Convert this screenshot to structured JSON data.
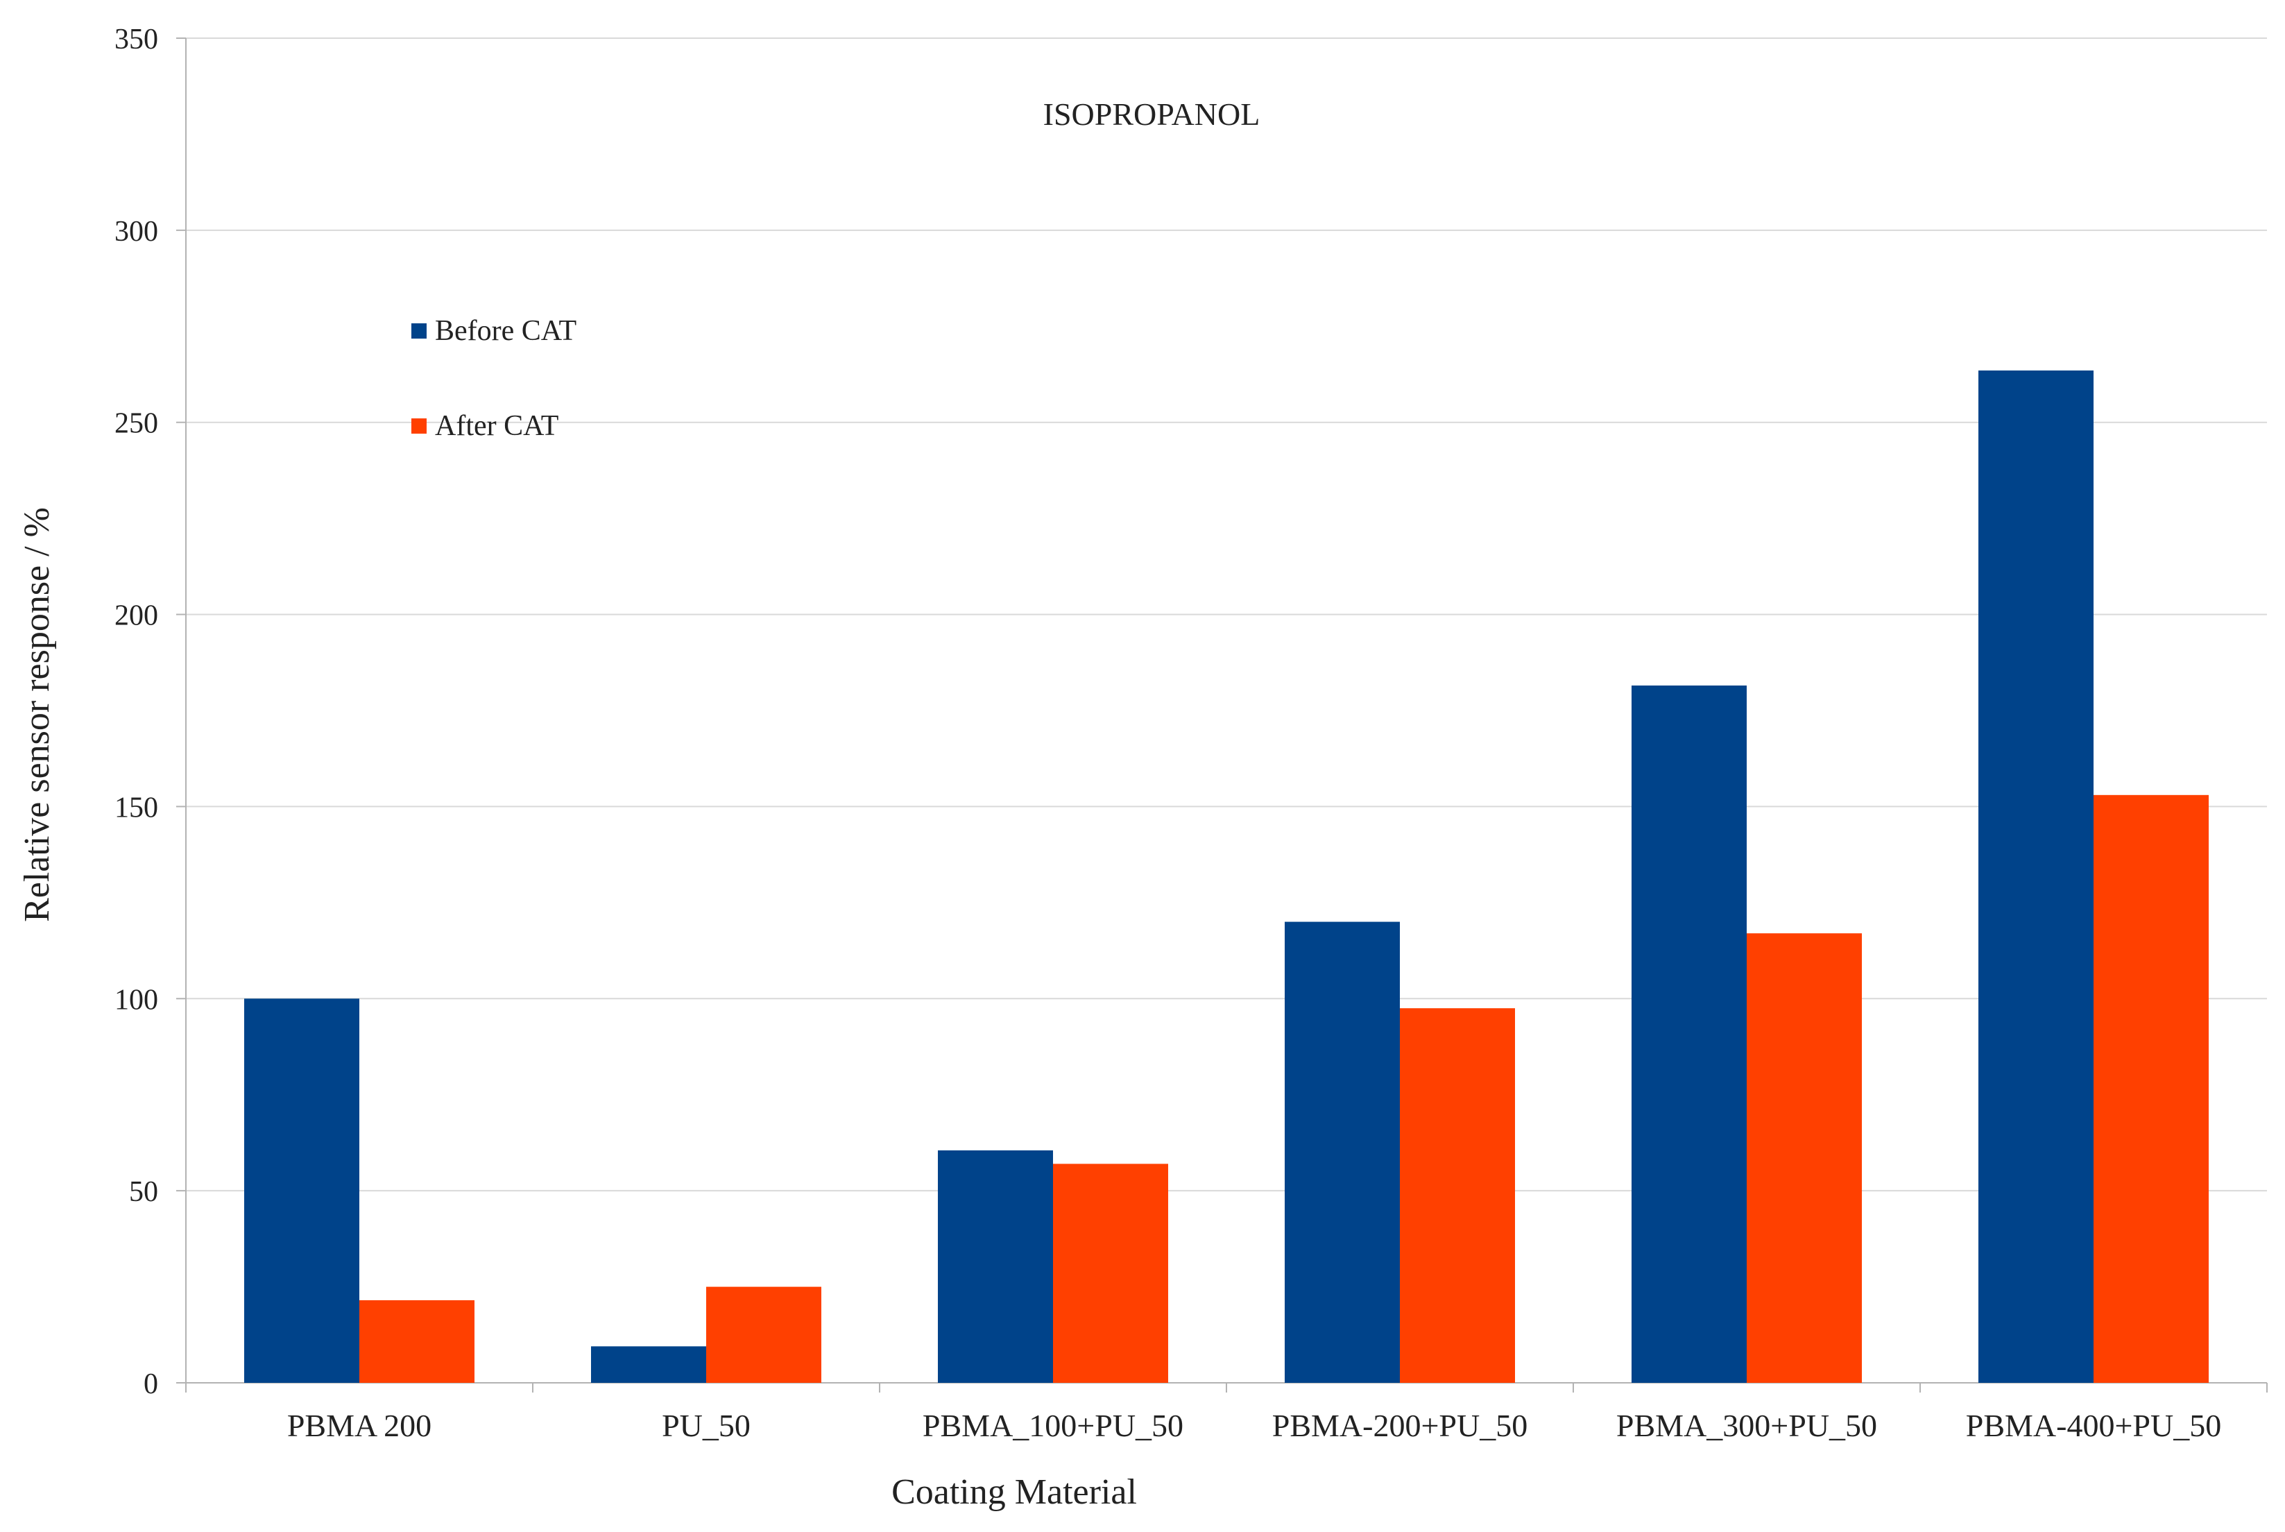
{
  "chart_data": {
    "type": "bar",
    "title": "ISOPROPANOL",
    "xlabel": "Coating Material",
    "ylabel": "Relative sensor response / %",
    "ylim": [
      0,
      350
    ],
    "yticks": [
      0,
      50,
      100,
      150,
      200,
      250,
      300,
      350
    ],
    "grid": true,
    "legend_position": "upper-left",
    "categories": [
      "PBMA 200",
      "PU_50",
      "PBMA_100+PU_50",
      "PBMA-200+PU_50",
      "PBMA_300+PU_50",
      "PBMA-400+PU_50"
    ],
    "series": [
      {
        "name": "Before CAT",
        "color": "#00438a",
        "values": [
          100,
          9.5,
          60.5,
          120,
          181.5,
          263.5
        ]
      },
      {
        "name": "After CAT",
        "color": "#ff4000",
        "values": [
          21.5,
          25,
          57,
          97.5,
          117,
          153
        ]
      }
    ]
  }
}
